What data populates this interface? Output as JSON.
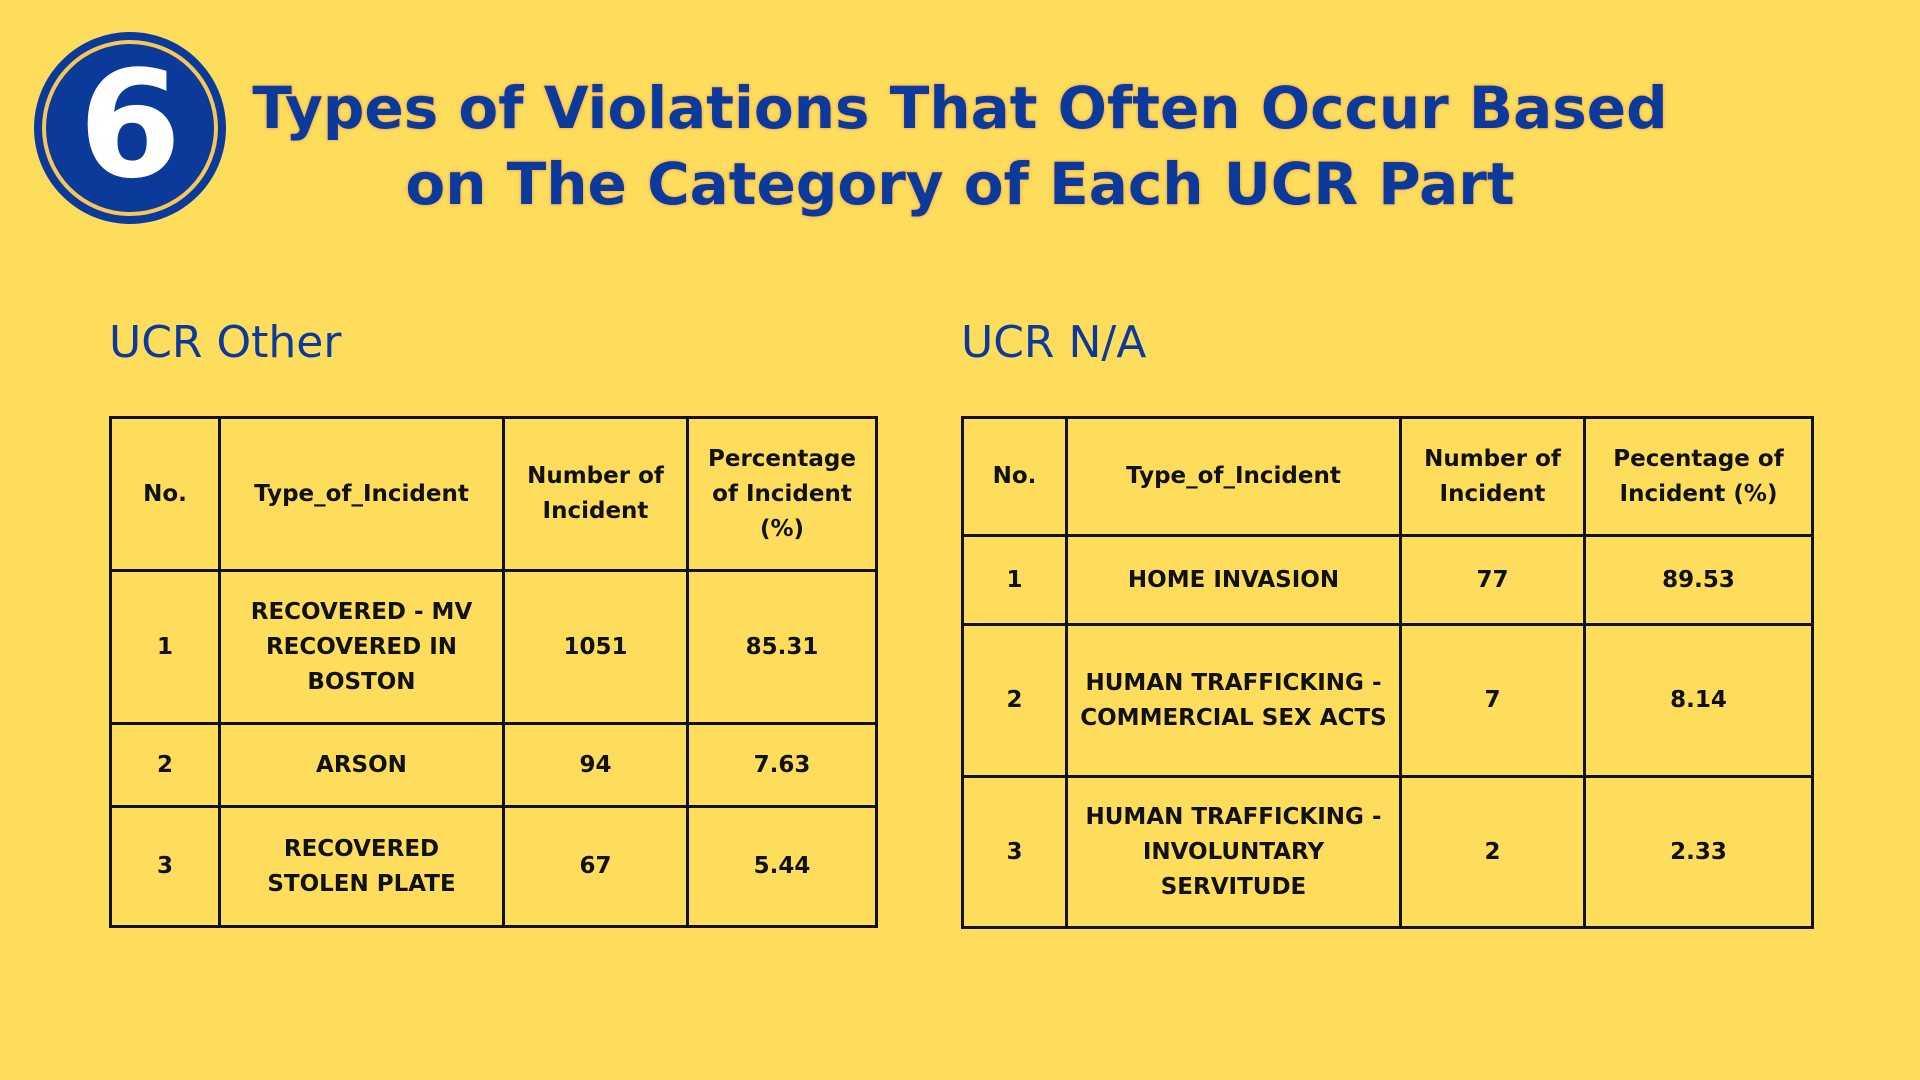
{
  "badge": {
    "number": "6"
  },
  "title": {
    "line1": "Types of Violations That Often Occur Based",
    "line2": "on The Category of Each UCR Part"
  },
  "tables": [
    {
      "heading": "UCR Other",
      "columns": [
        "No.",
        "Type_of_Incident",
        "Number of Incident",
        "Percentage of Incident (%)"
      ],
      "rows": [
        {
          "no": "1",
          "type": "RECOVERED - MV RECOVERED IN BOSTON",
          "count": "1051",
          "percent": "85.31"
        },
        {
          "no": "2",
          "type": "ARSON",
          "count": "94",
          "percent": "7.63"
        },
        {
          "no": "3",
          "type": "RECOVERED STOLEN PLATE",
          "count": "67",
          "percent": "5.44"
        }
      ]
    },
    {
      "heading": "UCR N/A",
      "columns": [
        "No.",
        "Type_of_Incident",
        "Number of Incident",
        "Pecentage of Incident (%)"
      ],
      "rows": [
        {
          "no": "1",
          "type": "HOME INVASION",
          "count": "77",
          "percent": "89.53"
        },
        {
          "no": "2",
          "type": "HUMAN TRAFFICKING - COMMERCIAL SEX ACTS",
          "count": "7",
          "percent": "8.14"
        },
        {
          "no": "3",
          "type": "HUMAN TRAFFICKING - INVOLUNTARY SERVITUDE",
          "count": "2",
          "percent": "2.33"
        }
      ]
    }
  ],
  "colors": {
    "background": "#FEDD5C",
    "accent": "#0B3A9A",
    "text_outline": "#F6B35A",
    "table_text": "#111111"
  }
}
